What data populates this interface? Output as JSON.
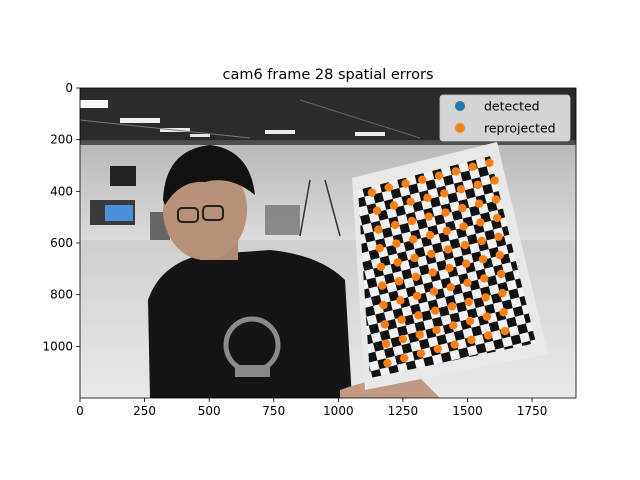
{
  "chart_data": {
    "type": "scatter",
    "title": "cam6 frame 28 spatial errors",
    "xlabel": "",
    "ylabel": "",
    "xlim": [
      0,
      1920
    ],
    "ylim": [
      1200,
      0
    ],
    "y_inverted": true,
    "background": "photo-frame",
    "x_ticks": [
      0,
      250,
      500,
      750,
      1000,
      1250,
      1500,
      1750
    ],
    "y_ticks": [
      0,
      200,
      400,
      600,
      800,
      1000
    ],
    "legend": {
      "placement": "top-right"
    },
    "series": [
      {
        "name": "detected",
        "color": "#1f77b4",
        "points": []
      },
      {
        "name": "reprojected",
        "color": "#ff7f0e",
        "points": [
          [
            1130,
            405
          ],
          [
            1195,
            385
          ],
          [
            1260,
            370
          ],
          [
            1325,
            355
          ],
          [
            1390,
            340
          ],
          [
            1455,
            323
          ],
          [
            1520,
            305
          ],
          [
            1585,
            290
          ],
          [
            1150,
            475
          ],
          [
            1215,
            455
          ],
          [
            1280,
            440
          ],
          [
            1345,
            425
          ],
          [
            1410,
            408
          ],
          [
            1475,
            392
          ],
          [
            1540,
            375
          ],
          [
            1605,
            358
          ],
          [
            1155,
            548
          ],
          [
            1220,
            530
          ],
          [
            1285,
            515
          ],
          [
            1350,
            498
          ],
          [
            1415,
            482
          ],
          [
            1480,
            465
          ],
          [
            1545,
            448
          ],
          [
            1610,
            432
          ],
          [
            1160,
            620
          ],
          [
            1225,
            602
          ],
          [
            1290,
            586
          ],
          [
            1355,
            570
          ],
          [
            1420,
            553
          ],
          [
            1485,
            536
          ],
          [
            1550,
            520
          ],
          [
            1615,
            503
          ],
          [
            1165,
            692
          ],
          [
            1230,
            675
          ],
          [
            1295,
            658
          ],
          [
            1360,
            642
          ],
          [
            1425,
            625
          ],
          [
            1490,
            608
          ],
          [
            1555,
            592
          ],
          [
            1620,
            576
          ],
          [
            1170,
            765
          ],
          [
            1235,
            748
          ],
          [
            1300,
            731
          ],
          [
            1365,
            714
          ],
          [
            1430,
            697
          ],
          [
            1495,
            680
          ],
          [
            1560,
            663
          ],
          [
            1625,
            647
          ],
          [
            1175,
            840
          ],
          [
            1240,
            822
          ],
          [
            1305,
            805
          ],
          [
            1370,
            788
          ],
          [
            1435,
            771
          ],
          [
            1500,
            754
          ],
          [
            1565,
            737
          ],
          [
            1630,
            720
          ],
          [
            1180,
            915
          ],
          [
            1245,
            897
          ],
          [
            1310,
            880
          ],
          [
            1375,
            862
          ],
          [
            1440,
            845
          ],
          [
            1505,
            828
          ],
          [
            1570,
            811
          ],
          [
            1635,
            794
          ],
          [
            1185,
            990
          ],
          [
            1250,
            972
          ],
          [
            1315,
            955
          ],
          [
            1380,
            937
          ],
          [
            1445,
            919
          ],
          [
            1510,
            902
          ],
          [
            1575,
            885
          ],
          [
            1640,
            868
          ],
          [
            1190,
            1065
          ],
          [
            1255,
            1046
          ],
          [
            1320,
            1028
          ],
          [
            1385,
            1010
          ],
          [
            1450,
            993
          ],
          [
            1515,
            975
          ],
          [
            1580,
            958
          ],
          [
            1645,
            941
          ]
        ]
      }
    ]
  }
}
